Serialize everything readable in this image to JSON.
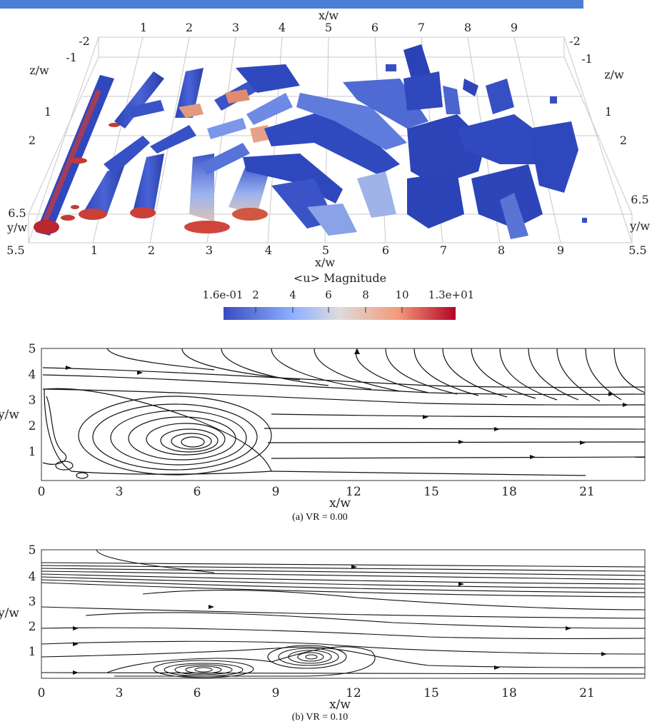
{
  "figure3d": {
    "x_title_top": "x/w",
    "x_title_bottom": "x/w",
    "x_ticks": [
      "1",
      "2",
      "3",
      "4",
      "5",
      "6",
      "7",
      "8",
      "9"
    ],
    "z_title": "z/w",
    "z_ticks": [
      "-2",
      "-1",
      "1",
      "2"
    ],
    "y_title": "y/w",
    "y_ticks": [
      "6.5",
      "5.5"
    ],
    "colorbar": {
      "title": "<u> Magnitude",
      "labels": [
        "1.6e-01",
        "2",
        "4",
        "6",
        "8",
        "10",
        "1.3e+01"
      ],
      "colors": [
        "#3a4cc0",
        "#8db0fe",
        "#dddcdc",
        "#f49a7b",
        "#b40426"
      ]
    }
  },
  "panel_a": {
    "caption": "(a) VR = 0.00",
    "xlabel": "x/w",
    "ylabel": "y/w",
    "x_ticks": [
      "0",
      "3",
      "6",
      "9",
      "12",
      "15",
      "18",
      "21"
    ],
    "y_ticks": [
      "1",
      "2",
      "3",
      "4",
      "5"
    ]
  },
  "panel_b": {
    "caption": "(b) VR = 0.10",
    "xlabel": "x/w",
    "ylabel": "y/w",
    "x_ticks": [
      "0",
      "3",
      "6",
      "9",
      "12",
      "15",
      "18",
      "21"
    ],
    "y_ticks": [
      "1",
      "2",
      "3",
      "4",
      "5"
    ]
  }
}
